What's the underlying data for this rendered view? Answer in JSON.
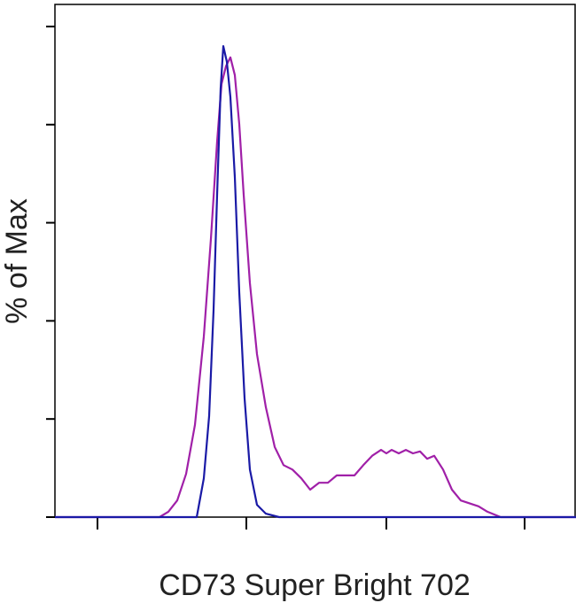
{
  "chart_data": {
    "type": "line",
    "xlabel": "CD73 Super Bright 702",
    "ylabel": "% of Max",
    "xlim": [
      0,
      588
    ],
    "xticks": [
      48,
      216,
      374,
      530
    ],
    "ylim": [
      0,
      104.5
    ],
    "yticks": [
      0,
      20,
      40,
      60,
      80,
      100
    ],
    "series": [
      {
        "color": "#a020a8",
        "x": [
          0,
          118,
          128,
          138,
          148,
          158,
          168,
          176,
          183,
          188,
          193,
          198,
          203,
          208,
          213,
          220,
          228,
          238,
          248,
          258,
          268,
          278,
          288,
          298,
          308,
          318,
          338,
          348,
          358,
          368,
          374,
          380,
          388,
          396,
          404,
          412,
          420,
          428,
          438,
          448,
          458,
          478,
          488,
          503,
          588
        ],
        "values": [
          0,
          0,
          1.1,
          3.4,
          8.8,
          18.8,
          36.8,
          56.7,
          76.5,
          88.3,
          91.9,
          93.7,
          90.1,
          80.1,
          65.7,
          47.7,
          33.2,
          22.4,
          14.3,
          10.6,
          9.7,
          7.9,
          5.6,
          7,
          7,
          8.5,
          8.5,
          10.6,
          12.5,
          13.7,
          13,
          13.7,
          13,
          13.7,
          13,
          13.4,
          11.9,
          12.5,
          9.7,
          5.6,
          3.4,
          2.2,
          1.1,
          0,
          0
        ]
      },
      {
        "color": "#1a1aa6",
        "x": [
          0,
          153,
          160,
          168,
          174,
          179,
          183,
          187,
          190,
          194,
          198,
          203,
          208,
          214,
          220,
          228,
          238,
          253,
          588
        ],
        "values": [
          0,
          0,
          0,
          7.9,
          20.6,
          42.2,
          65.7,
          87.4,
          96,
          92.8,
          85.6,
          69.3,
          45.8,
          24.2,
          9.7,
          2.5,
          0.7,
          0,
          0
        ]
      }
    ]
  }
}
